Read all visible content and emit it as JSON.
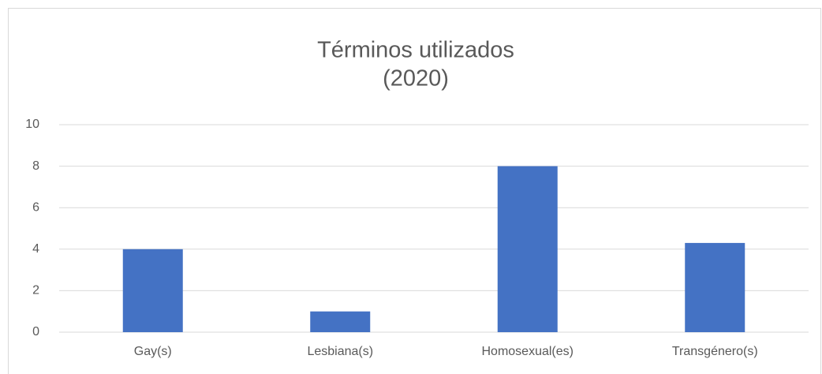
{
  "chart_data": {
    "type": "bar",
    "title": [
      "Términos utilizados",
      "(2020)"
    ],
    "categories": [
      "Gay(s)",
      "Lesbiana(s)",
      "Homosexual(es)",
      "Transgénero(s)"
    ],
    "values": [
      4,
      1,
      8,
      4.3
    ],
    "color": "#4472c4",
    "ylim": [
      0,
      10
    ],
    "yticks": [
      0,
      2,
      4,
      6,
      8,
      10
    ],
    "grid": true
  }
}
